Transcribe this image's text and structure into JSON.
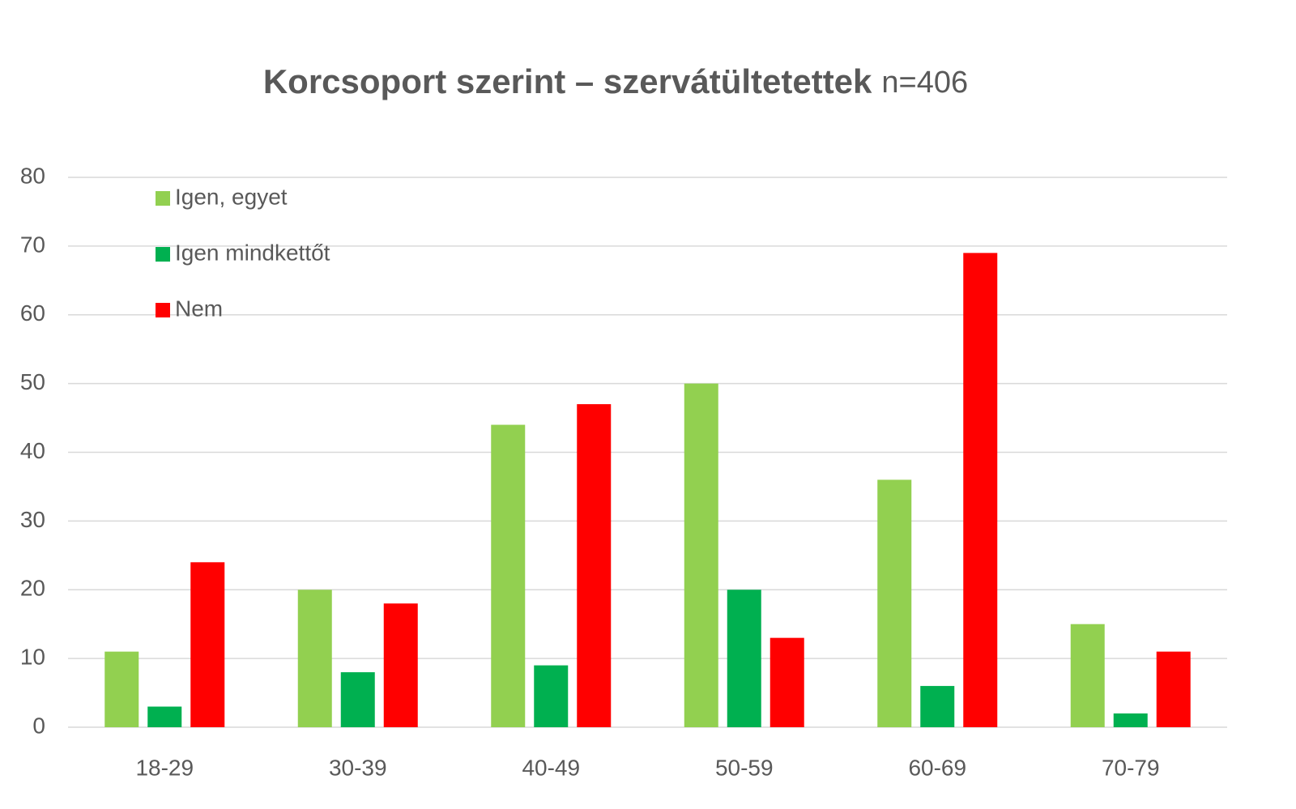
{
  "chart_data": {
    "type": "bar",
    "title": "Korcsoport szerint – szervátültetettek",
    "subtitle": "n=406",
    "categories": [
      "18-29",
      "30-39",
      "40-49",
      "50-59",
      "60-69",
      "70-79"
    ],
    "series": [
      {
        "name": "Igen, egyet",
        "color": "#92d050",
        "values": [
          11,
          20,
          44,
          50,
          36,
          15
        ]
      },
      {
        "name": "Igen mindkettőt",
        "color": "#00b050",
        "values": [
          3,
          8,
          9,
          20,
          6,
          2
        ]
      },
      {
        "name": "Nem",
        "color": "#ff0000",
        "values": [
          24,
          18,
          47,
          13,
          69,
          11
        ]
      }
    ],
    "ylim": [
      0,
      80
    ],
    "yticks": [
      0,
      10,
      20,
      30,
      40,
      50,
      60,
      70,
      80
    ],
    "grid": true,
    "legend": "top-left"
  }
}
